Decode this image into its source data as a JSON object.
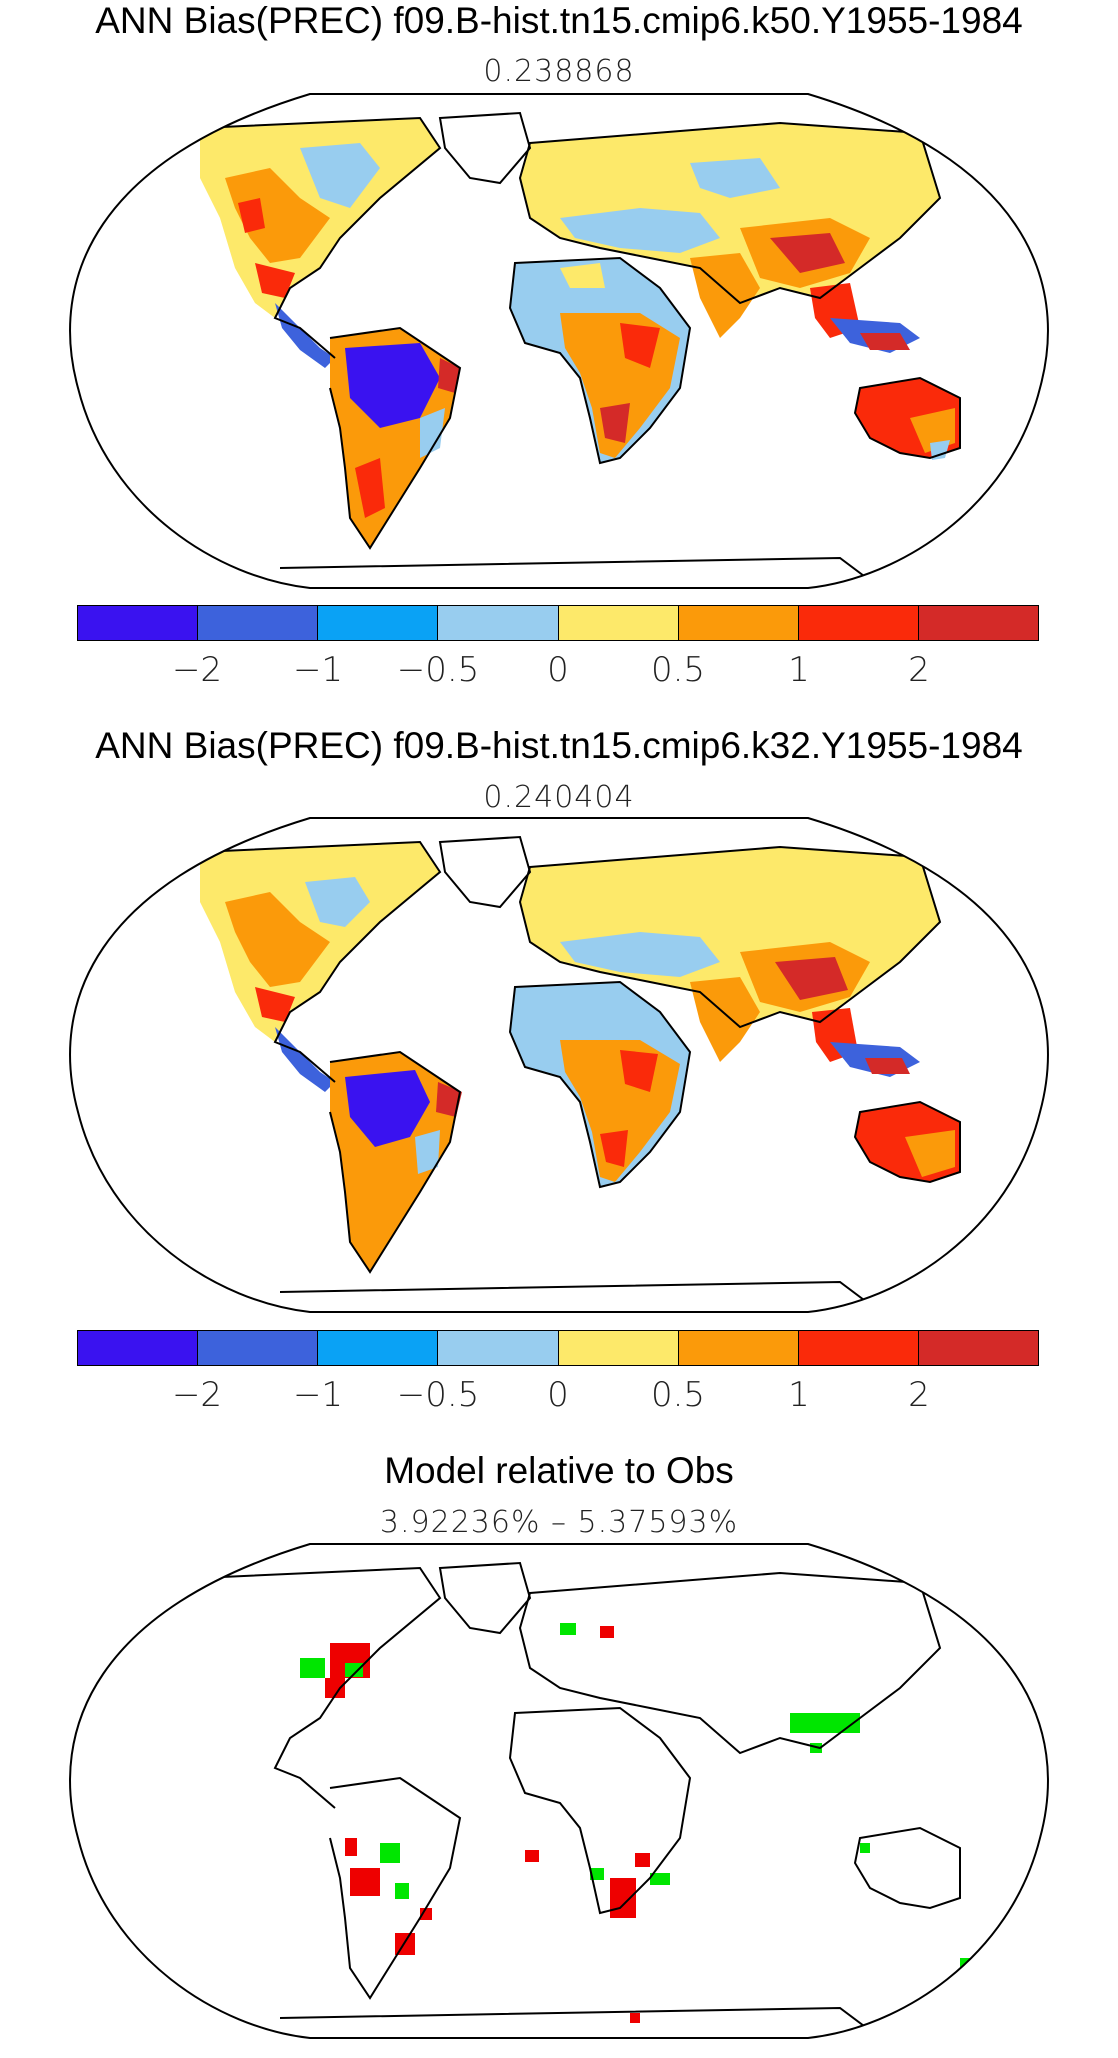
{
  "panels": [
    {
      "title": "ANN Bias(PREC) f09.B-hist.tn15.cmip6.k50.Y1955-1984",
      "subtitle": "0.238868"
    },
    {
      "title": "ANN Bias(PREC) f09.B-hist.tn15.cmip6.k32.Y1955-1984",
      "subtitle": "0.240404"
    },
    {
      "title": "Model relative to Obs",
      "subtitle": "3.92236% – 5.37593%"
    }
  ],
  "colorbar": {
    "colors": [
      "#3a12f0",
      "#3d62dc",
      "#0aa2f5",
      "#98cdef",
      "#fde96a",
      "#fb9a0a",
      "#fa2a0a",
      "#d42a28"
    ],
    "tick_labels": [
      "−2",
      "−1",
      "−0.5",
      "0",
      "0.5",
      "1",
      "2"
    ]
  },
  "difference_colors": {
    "improved": "#00e600",
    "worse": "#ee0000"
  }
}
